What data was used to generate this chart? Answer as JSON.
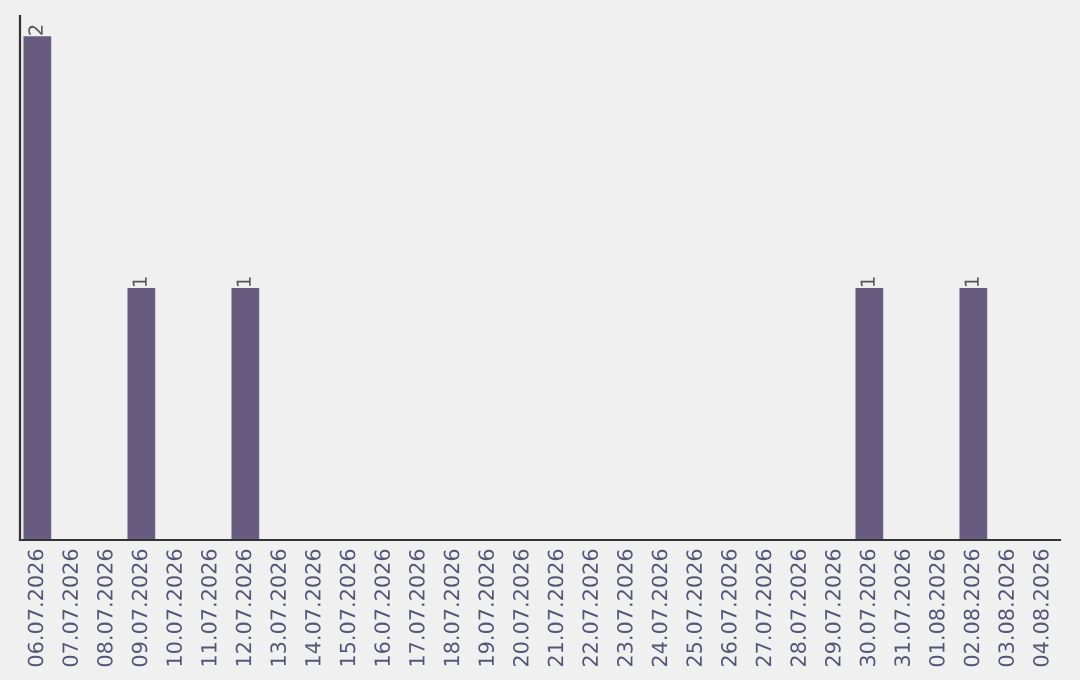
{
  "chart_data": {
    "type": "bar",
    "categories": [
      "06.07.2026",
      "07.07.2026",
      "08.07.2026",
      "09.07.2026",
      "10.07.2026",
      "11.07.2026",
      "12.07.2026",
      "13.07.2026",
      "14.07.2026",
      "15.07.2026",
      "16.07.2026",
      "17.07.2026",
      "18.07.2026",
      "19.07.2026",
      "20.07.2026",
      "21.07.2026",
      "22.07.2026",
      "23.07.2026",
      "24.07.2026",
      "25.07.2026",
      "26.07.2026",
      "27.07.2026",
      "28.07.2026",
      "29.07.2026",
      "30.07.2026",
      "31.07.2026",
      "01.08.2026",
      "02.08.2026",
      "03.08.2026",
      "04.08.2026"
    ],
    "values": [
      2,
      0,
      0,
      1,
      0,
      0,
      1,
      0,
      0,
      0,
      0,
      0,
      0,
      0,
      0,
      0,
      0,
      0,
      0,
      0,
      0,
      0,
      0,
      0,
      1,
      0,
      0,
      1,
      0,
      0
    ],
    "value_labels": [
      "2",
      null,
      null,
      "1",
      null,
      null,
      "1",
      null,
      null,
      null,
      null,
      null,
      null,
      null,
      null,
      null,
      null,
      null,
      null,
      null,
      null,
      null,
      null,
      null,
      "1",
      null,
      null,
      "1",
      null,
      null
    ],
    "color": "#675c7f"
  }
}
